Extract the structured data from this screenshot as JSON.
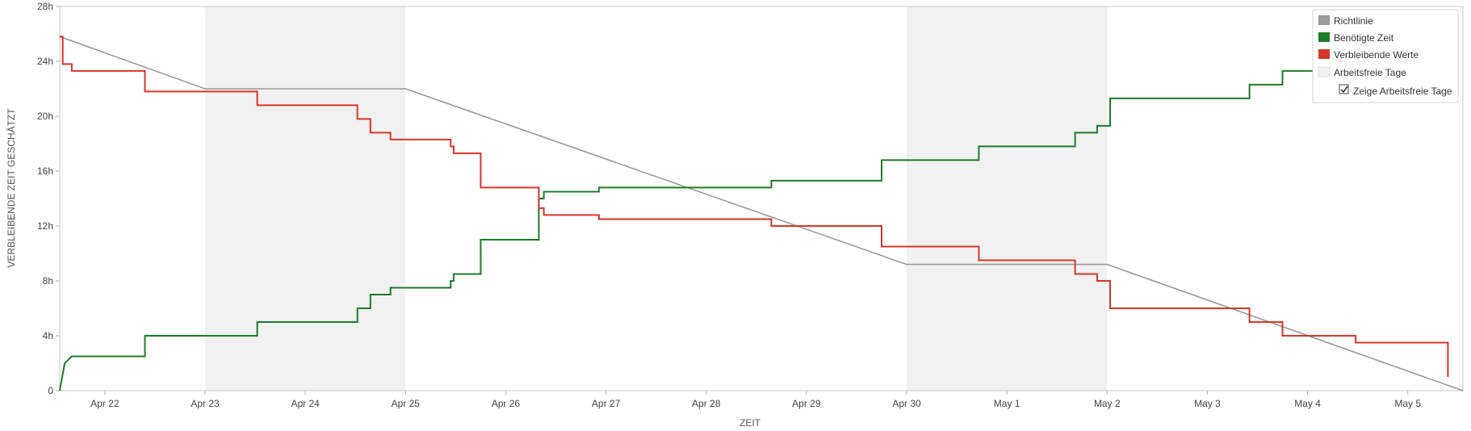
{
  "chart_data": {
    "type": "line",
    "xlabel": "ZEIT",
    "ylabel": "VERBLEIBENDE ZEIT GESCHÄTZT",
    "x_ticks": [
      "Apr 22",
      "Apr 23",
      "Apr 24",
      "Apr 25",
      "Apr 26",
      "Apr 27",
      "Apr 28",
      "Apr 29",
      "Apr 30",
      "May 1",
      "May 2",
      "May 3",
      "May 4",
      "May 5"
    ],
    "y_ticks": [
      "0",
      "4h",
      "8h",
      "12h",
      "16h",
      "20h",
      "24h",
      "28h"
    ],
    "xlim": [
      -0.45,
      13.55
    ],
    "ylim": [
      0,
      28
    ],
    "x_origin_label": "Apr 22",
    "non_working_days": [
      [
        1,
        3
      ],
      [
        8,
        10
      ]
    ],
    "legend_position": "top-right",
    "show_non_working_days": true,
    "series": [
      {
        "name": "Richtlinie",
        "color": "#999999",
        "step": false,
        "points": [
          [
            -0.45,
            25.8
          ],
          [
            1,
            22
          ],
          [
            3,
            22
          ],
          [
            8,
            9.2
          ],
          [
            10,
            9.2
          ],
          [
            13.55,
            0
          ]
        ]
      },
      {
        "name": "Benötigte Zeit",
        "color": "#1e7b2a",
        "step": true,
        "points": [
          [
            -0.45,
            0
          ],
          [
            -0.4,
            2
          ],
          [
            -0.33,
            2.5
          ],
          [
            0.4,
            2.5
          ],
          [
            0.4,
            4
          ],
          [
            1.52,
            4
          ],
          [
            1.52,
            5
          ],
          [
            2.52,
            5
          ],
          [
            2.52,
            6
          ],
          [
            2.65,
            6
          ],
          [
            2.65,
            7
          ],
          [
            2.85,
            7
          ],
          [
            2.85,
            7.5
          ],
          [
            3.45,
            7.5
          ],
          [
            3.45,
            8
          ],
          [
            3.48,
            8
          ],
          [
            3.48,
            8.5
          ],
          [
            3.75,
            8.5
          ],
          [
            3.75,
            11
          ],
          [
            4.33,
            11
          ],
          [
            4.33,
            14
          ],
          [
            4.38,
            14
          ],
          [
            4.38,
            14.5
          ],
          [
            4.93,
            14.5
          ],
          [
            4.93,
            14.8
          ],
          [
            6.65,
            14.8
          ],
          [
            6.65,
            15.3
          ],
          [
            7.75,
            15.3
          ],
          [
            7.75,
            16.8
          ],
          [
            8.72,
            16.8
          ],
          [
            8.72,
            17.8
          ],
          [
            9.68,
            17.8
          ],
          [
            9.68,
            18.8
          ],
          [
            9.9,
            18.8
          ],
          [
            9.9,
            19.3
          ],
          [
            10.03,
            19.3
          ],
          [
            10.03,
            21.3
          ],
          [
            11.42,
            21.3
          ],
          [
            11.42,
            22.3
          ],
          [
            11.75,
            22.3
          ],
          [
            11.75,
            23.3
          ],
          [
            12.1,
            23.3
          ]
        ]
      },
      {
        "name": "Verbleibende Werte",
        "color": "#d9352a",
        "step": true,
        "points": [
          [
            -0.45,
            25.8
          ],
          [
            -0.42,
            25.8
          ],
          [
            -0.42,
            23.8
          ],
          [
            -0.33,
            23.8
          ],
          [
            -0.33,
            23.3
          ],
          [
            0.4,
            23.3
          ],
          [
            0.4,
            21.8
          ],
          [
            1.52,
            21.8
          ],
          [
            1.52,
            20.8
          ],
          [
            2.52,
            20.8
          ],
          [
            2.52,
            19.8
          ],
          [
            2.65,
            19.8
          ],
          [
            2.65,
            18.8
          ],
          [
            2.85,
            18.8
          ],
          [
            2.85,
            18.3
          ],
          [
            3.45,
            18.3
          ],
          [
            3.45,
            17.8
          ],
          [
            3.48,
            17.8
          ],
          [
            3.48,
            17.3
          ],
          [
            3.75,
            17.3
          ],
          [
            3.75,
            14.8
          ],
          [
            4.33,
            14.8
          ],
          [
            4.33,
            13.3
          ],
          [
            4.38,
            13.3
          ],
          [
            4.38,
            12.8
          ],
          [
            4.93,
            12.8
          ],
          [
            4.93,
            12.5
          ],
          [
            6.65,
            12.5
          ],
          [
            6.65,
            12
          ],
          [
            7.75,
            12
          ],
          [
            7.75,
            10.5
          ],
          [
            8.72,
            10.5
          ],
          [
            8.72,
            9.5
          ],
          [
            9.68,
            9.5
          ],
          [
            9.68,
            8.5
          ],
          [
            9.9,
            8.5
          ],
          [
            9.9,
            8
          ],
          [
            10.03,
            8
          ],
          [
            10.03,
            6
          ],
          [
            11.42,
            6
          ],
          [
            11.42,
            5
          ],
          [
            11.75,
            5
          ],
          [
            11.75,
            4
          ],
          [
            12.48,
            4
          ],
          [
            12.48,
            3.5
          ],
          [
            13.4,
            3.5
          ],
          [
            13.4,
            1
          ]
        ]
      }
    ],
    "legend": {
      "items": [
        {
          "label": "Richtlinie",
          "color": "#999999"
        },
        {
          "label": "Benötigte Zeit",
          "color": "#1e7b2a"
        },
        {
          "label": "Verbleibende Werte",
          "color": "#d9352a"
        },
        {
          "label": "Arbeitsfreie Tage",
          "color": "#f1f1f1"
        }
      ],
      "checkbox_label": "Zeige Arbeitsfreie Tage",
      "checkbox_checked": true
    }
  }
}
